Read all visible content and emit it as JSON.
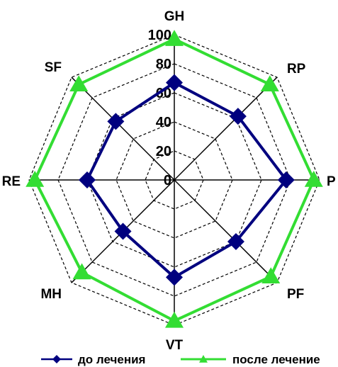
{
  "chart_data": {
    "type": "radar",
    "categories": [
      "GH",
      "RP",
      "P",
      "PF",
      "VT",
      "MH",
      "RE",
      "SF"
    ],
    "rlim": [
      0,
      100
    ],
    "ticks": [
      "0",
      "20",
      "40",
      "60",
      "80",
      "100"
    ],
    "grid": "dashed",
    "legend_position": "bottom",
    "series": [
      {
        "name": "до лечения",
        "values": [
          67,
          62,
          77,
          60,
          67,
          50,
          60,
          57
        ],
        "color": "#00007f",
        "marker": "diamond"
      },
      {
        "name": "после лечение",
        "values": [
          97,
          93,
          96,
          94,
          97,
          90,
          96,
          93
        ],
        "color": "#33dd33",
        "marker": "triangle"
      }
    ]
  }
}
